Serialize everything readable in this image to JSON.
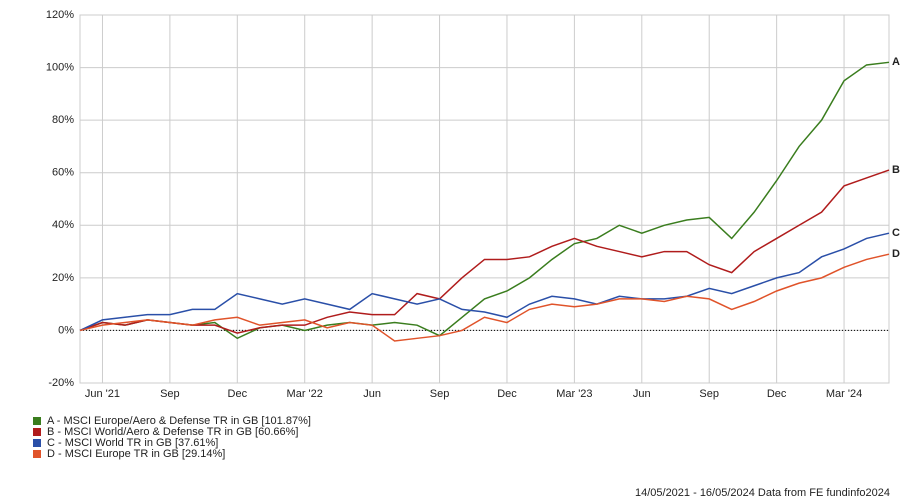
{
  "chart_data": {
    "type": "line",
    "categories": [
      null,
      "Jun '21",
      null,
      null,
      "Sep",
      null,
      null,
      "Dec",
      null,
      null,
      "Mar '22",
      null,
      null,
      "Jun",
      null,
      null,
      "Sep",
      null,
      null,
      "Dec",
      null,
      null,
      "Mar '23",
      null,
      null,
      "Jun",
      null,
      null,
      "Sep",
      null,
      null,
      "Dec",
      null,
      null,
      "Mar '24",
      null,
      null
    ],
    "series": [
      {
        "name": "A - MSCI Europe/Aero & Defense TR in GB [101.87%]",
        "label": "A",
        "color": "#3a7d1e",
        "values": [
          0,
          3,
          2,
          4,
          3,
          2,
          3,
          -3,
          1,
          2,
          0,
          2,
          3,
          2,
          3,
          2,
          -2,
          5,
          12,
          15,
          20,
          27,
          33,
          35,
          40,
          37,
          40,
          42,
          43,
          35,
          45,
          57,
          70,
          80,
          95,
          101,
          102
        ]
      },
      {
        "name": "B - MSCI World/Aero & Defense TR in GB [60.66%]",
        "label": "B",
        "color": "#b01c1c",
        "values": [
          0,
          3,
          2,
          4,
          3,
          2,
          2,
          -1,
          1,
          2,
          2,
          5,
          7,
          6,
          6,
          14,
          12,
          20,
          27,
          27,
          28,
          32,
          35,
          32,
          30,
          28,
          30,
          30,
          25,
          22,
          30,
          35,
          40,
          45,
          55,
          58,
          61
        ]
      },
      {
        "name": "C - MSCI World TR in GB [37.61%]",
        "label": "C",
        "color": "#2a4fa8",
        "values": [
          0,
          4,
          5,
          6,
          6,
          8,
          8,
          14,
          12,
          10,
          12,
          10,
          8,
          14,
          12,
          10,
          12,
          8,
          7,
          5,
          10,
          13,
          12,
          10,
          13,
          12,
          12,
          13,
          16,
          14,
          17,
          20,
          22,
          28,
          31,
          35,
          37
        ]
      },
      {
        "name": "D - MSCI Europe TR in GB [29.14%]",
        "label": "D",
        "color": "#e0532a",
        "values": [
          0,
          2,
          3,
          4,
          3,
          2,
          4,
          5,
          2,
          3,
          4,
          1,
          3,
          2,
          -4,
          -3,
          -2,
          0,
          5,
          3,
          8,
          10,
          9,
          10,
          12,
          12,
          11,
          13,
          12,
          8,
          11,
          15,
          18,
          20,
          24,
          27,
          29
        ]
      }
    ],
    "ylim": [
      -20,
      120
    ],
    "yticks": [
      {
        "value": -20,
        "label": "-20%"
      },
      {
        "value": 0,
        "label": "0%"
      },
      {
        "value": 20,
        "label": "20%"
      },
      {
        "value": 40,
        "label": "40%"
      },
      {
        "value": 60,
        "label": "60%"
      },
      {
        "value": 80,
        "label": "80%"
      },
      {
        "value": 100,
        "label": "100%"
      },
      {
        "value": 120,
        "label": "120%"
      }
    ],
    "grid": true,
    "footer": "14/05/2021 - 16/05/2024 Data from FE fundinfo2024"
  }
}
